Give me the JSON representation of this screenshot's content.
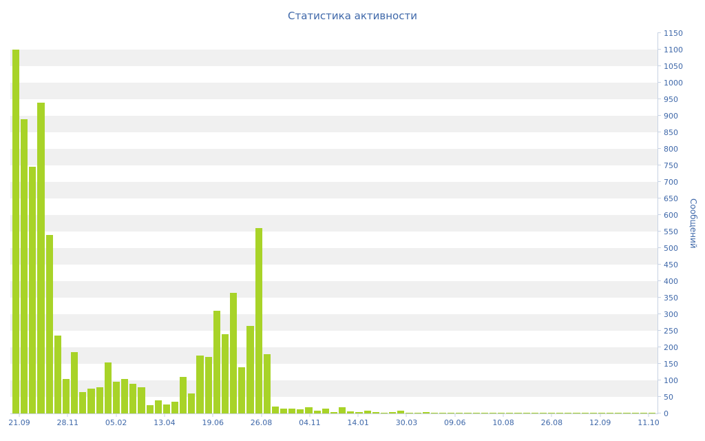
{
  "title": "Статистика активности",
  "colors": {
    "bar": "#a8d328",
    "text": "#3f68a9",
    "axis_line": "#c7d2e3",
    "stripe": "#f0f0f0",
    "background": "#ffffff"
  },
  "chart_data": {
    "type": "bar",
    "title": "Статистика активности",
    "xlabel": "",
    "ylabel": "Сообщений",
    "ylim": [
      0,
      1150
    ],
    "grid": "horizontal-stripes-every-50",
    "legend": "none",
    "y_ticks": [
      0,
      50,
      100,
      150,
      200,
      250,
      300,
      350,
      400,
      450,
      500,
      550,
      600,
      650,
      700,
      750,
      800,
      850,
      900,
      950,
      1000,
      1050,
      1100,
      1150
    ],
    "x_tick_labels": [
      "21.09",
      "28.11",
      "05.02",
      "13.04",
      "19.06",
      "26.08",
      "04.11",
      "14.01",
      "30.03",
      "09.06",
      "10.08",
      "26.08",
      "12.09",
      "11.10"
    ],
    "values": [
      1100,
      890,
      745,
      940,
      540,
      235,
      105,
      185,
      65,
      75,
      80,
      155,
      95,
      105,
      90,
      80,
      25,
      40,
      28,
      35,
      110,
      60,
      175,
      170,
      310,
      240,
      365,
      140,
      265,
      560,
      180,
      20,
      15,
      15,
      12,
      18,
      8,
      15,
      5,
      18,
      6,
      4,
      8,
      4,
      3,
      5,
      8,
      3,
      2,
      4,
      2,
      2,
      3,
      2,
      2,
      2,
      1,
      2,
      1,
      2,
      1,
      1,
      2,
      1,
      1,
      1,
      2,
      1,
      1,
      2,
      1,
      1,
      1,
      2,
      1,
      1,
      2
    ]
  }
}
